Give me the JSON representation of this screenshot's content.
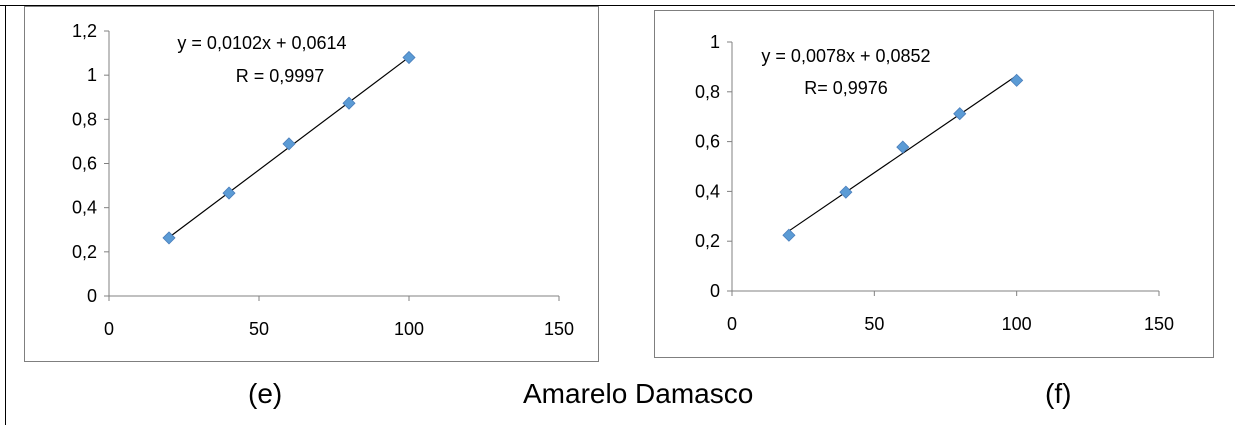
{
  "colors": {
    "marker": "#5B9BD5",
    "marker_edge": "#4A7EBB",
    "axis": "#808080",
    "trendline": "#000000",
    "border": "#7F7F7F"
  },
  "captions": {
    "left": "(e)",
    "center": "Amarelo Damasco",
    "right": "(f)"
  },
  "chart_data": [
    {
      "type": "scatter",
      "x": [
        20,
        40,
        60,
        80,
        100
      ],
      "y": [
        0.263,
        0.466,
        0.689,
        0.873,
        1.08
      ],
      "xlim": [
        0,
        150
      ],
      "ylim": [
        0,
        1.2
      ],
      "xticks": [
        0,
        50,
        100,
        150
      ],
      "xtick_labels": [
        "0",
        "50",
        "100",
        "150"
      ],
      "yticks": [
        0,
        0.2,
        0.4,
        0.6,
        0.8,
        1.0,
        1.2
      ],
      "ytick_labels": [
        "0",
        "0,2",
        "0,4",
        "0,6",
        "0,8",
        "1",
        "1,2"
      ],
      "trendline": {
        "slope": 0.0102,
        "intercept": 0.0614,
        "equation": "y = 0,0102x + 0,0614",
        "r_label": "R = 0,9997"
      },
      "marker": "diamond",
      "grid": false,
      "legend": "none"
    },
    {
      "type": "scatter",
      "x": [
        20,
        40,
        60,
        80,
        100
      ],
      "y": [
        0.224,
        0.397,
        0.578,
        0.712,
        0.846
      ],
      "xlim": [
        0,
        150
      ],
      "ylim": [
        0,
        1.0
      ],
      "xticks": [
        0,
        50,
        100,
        150
      ],
      "xtick_labels": [
        "0",
        "50",
        "100",
        "150"
      ],
      "yticks": [
        0,
        0.2,
        0.4,
        0.6,
        0.8,
        1.0
      ],
      "ytick_labels": [
        "0",
        "0,2",
        "0,4",
        "0,6",
        "0,8",
        "1"
      ],
      "trendline": {
        "slope": 0.0078,
        "intercept": 0.0852,
        "equation": "y = 0,0078x + 0,0852",
        "r_label": "R= 0,9976"
      },
      "marker": "diamond",
      "grid": false,
      "legend": "none"
    }
  ]
}
